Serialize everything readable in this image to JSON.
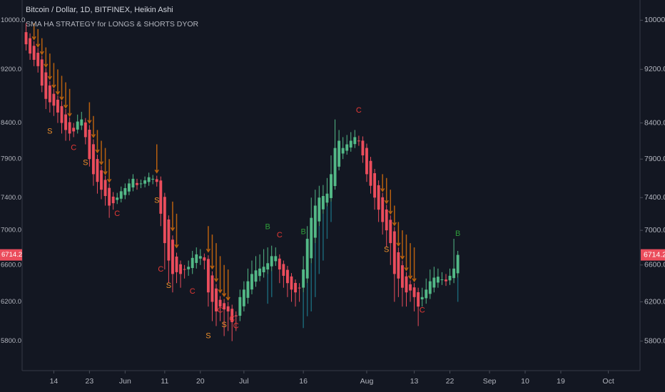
{
  "chart_data": {
    "type": "candlestick",
    "title": "Bitcoin / Dollar, 1D, BITFINEX, Heikin Ashi",
    "subtitle": "SMA HA STRATEGY for LONGS & SHORTS DYOR",
    "x": [
      "May 7",
      "May 8",
      "May 9",
      "May 10",
      "May 11",
      "May 12",
      "May 13",
      "May 14",
      "May 15",
      "May 16",
      "May 17",
      "May 18",
      "May 19",
      "May 20",
      "May 21",
      "May 22",
      "May 23",
      "May 24",
      "May 25",
      "May 26",
      "May 27",
      "May 28",
      "May 29",
      "May 30",
      "May 31",
      "Jun 1",
      "Jun 2",
      "Jun 3",
      "Jun 4",
      "Jun 5",
      "Jun 6",
      "Jun 7",
      "Jun 8",
      "Jun 9",
      "Jun 10",
      "Jun 11",
      "Jun 12",
      "Jun 13",
      "Jun 14",
      "Jun 15",
      "Jun 16",
      "Jun 17",
      "Jun 18",
      "Jun 19",
      "Jun 20",
      "Jun 21",
      "Jun 22",
      "Jun 23",
      "Jun 24",
      "Jun 25",
      "Jun 26",
      "Jun 27",
      "Jun 28",
      "Jun 29",
      "Jun 30",
      "Jul 1",
      "Jul 2",
      "Jul 3",
      "Jul 4",
      "Jul 5",
      "Jul 6",
      "Jul 7",
      "Jul 8",
      "Jul 9",
      "Jul 10",
      "Jul 11",
      "Jul 12",
      "Jul 13",
      "Jul 14",
      "Jul 15",
      "Jul 16",
      "Jul 17",
      "Jul 18",
      "Jul 19",
      "Jul 20",
      "Jul 21",
      "Jul 22",
      "Jul 23",
      "Jul 24",
      "Jul 25",
      "Jul 26",
      "Jul 27",
      "Jul 28",
      "Jul 29",
      "Jul 30",
      "Jul 31",
      "Aug 1",
      "Aug 2",
      "Aug 3",
      "Aug 4",
      "Aug 5",
      "Aug 6",
      "Aug 7",
      "Aug 8",
      "Aug 9",
      "Aug 10",
      "Aug 11",
      "Aug 12",
      "Aug 13",
      "Aug 14",
      "Aug 15",
      "Aug 16",
      "Aug 17",
      "Aug 18",
      "Aug 19",
      "Aug 20",
      "Aug 21",
      "Aug 22",
      "Aug 23",
      "Aug 24"
    ],
    "open": [
      9800,
      9700,
      9575,
      9463,
      9356,
      9153,
      8952,
      8826,
      8738,
      8644,
      8522,
      8411,
      8331,
      8306,
      8363,
      8407,
      8304,
      8102,
      7901,
      7751,
      7626,
      7523,
      7412,
      7371,
      7386,
      7433,
      7477,
      7529,
      7585,
      7573,
      7577,
      7599,
      7630,
      7635,
      7618,
      7409,
      7130,
      6890,
      6695,
      6608,
      6554,
      6552,
      6566,
      6623,
      6672,
      6686,
      6668,
      6484,
      6342,
      6221,
      6186,
      6153,
      6127,
      6059,
      6055,
      6153,
      6242,
      6331,
      6416,
      6478,
      6519,
      6550,
      6585,
      6643,
      6672,
      6611,
      6546,
      6473,
      6402,
      6351,
      6351,
      6451,
      6676,
      6913,
      7107,
      7254,
      7337,
      7394,
      7547,
      7799,
      7975,
      8013,
      8057,
      8104,
      8152,
      8151,
      8051,
      7876,
      7713,
      7557,
      7404,
      7252,
      7126,
      6988,
      6744,
      6597,
      6474,
      6387,
      6354,
      6302,
      6226,
      6238,
      6284,
      6352,
      6406,
      6438,
      6439,
      6430,
      6455,
      6508
    ],
    "high": [
      9950,
      9780,
      9650,
      9540,
      9420,
      9220,
      9020,
      8900,
      8800,
      8720,
      8600,
      8480,
      8400,
      8520,
      8560,
      8470,
      8370,
      8170,
      7960,
      7810,
      7680,
      7580,
      7470,
      7460,
      7540,
      7580,
      7640,
      7700,
      7640,
      7630,
      7670,
      7720,
      7690,
      7680,
      7670,
      7460,
      7180,
      6940,
      6740,
      6650,
      6600,
      6650,
      6760,
      6800,
      6780,
      6730,
      6710,
      6530,
      6390,
      6260,
      6230,
      6200,
      6170,
      6100,
      6330,
      6420,
      6560,
      6650,
      6700,
      6720,
      6780,
      6800,
      6820,
      6800,
      6720,
      6650,
      6590,
      6510,
      6440,
      6400,
      6700,
      7050,
      7400,
      7500,
      7550,
      7560,
      7650,
      7950,
      8450,
      8300,
      8200,
      8230,
      8270,
      8300,
      8220,
      8210,
      8110,
      7930,
      7770,
      7620,
      7460,
      7310,
      7180,
      7040,
      6800,
      6650,
      6520,
      6430,
      6400,
      6350,
      6350,
      6450,
      6550,
      6580,
      6560,
      6520,
      6500,
      6560,
      6900,
      6760
    ],
    "low": [
      9500,
      9350,
      9250,
      9150,
      8850,
      8600,
      8550,
      8500,
      8400,
      8250,
      8150,
      8150,
      8200,
      8250,
      8300,
      8100,
      7800,
      7550,
      7450,
      7380,
      7300,
      7150,
      7250,
      7320,
      7340,
      7380,
      7430,
      7480,
      7500,
      7520,
      7530,
      7550,
      7570,
      7540,
      7050,
      6550,
      6400,
      6300,
      6400,
      6350,
      6450,
      6480,
      6500,
      6560,
      6600,
      6550,
      6150,
      6000,
      5950,
      6000,
      5850,
      5900,
      5800,
      5900,
      6000,
      6100,
      6180,
      6280,
      6360,
      6420,
      6460,
      6500,
      6530,
      6590,
      6400,
      6350,
      6250,
      6200,
      6150,
      6200,
      6300,
      6400,
      6620,
      6850,
      7050,
      7200,
      7290,
      7350,
      7500,
      7750,
      7900,
      7960,
      8000,
      8050,
      8080,
      7850,
      7600,
      7450,
      7250,
      7100,
      6950,
      6800,
      6600,
      6200,
      6250,
      6150,
      6150,
      6200,
      6100,
      5950,
      6150,
      6180,
      6230,
      6300,
      6350,
      6380,
      6370,
      6380,
      6400,
      6460
    ],
    "close": [
      9600,
      9450,
      9350,
      9250,
      8950,
      8750,
      8700,
      8650,
      8550,
      8400,
      8300,
      8250,
      8280,
      8420,
      8450,
      8200,
      7900,
      7700,
      7600,
      7500,
      7420,
      7300,
      7330,
      7400,
      7480,
      7520,
      7580,
      7640,
      7560,
      7580,
      7620,
      7660,
      7640,
      7600,
      7200,
      6850,
      6650,
      6500,
      6520,
      6500,
      6550,
      6580,
      6680,
      6720,
      6700,
      6650,
      6300,
      6200,
      6100,
      6150,
      6120,
      6100,
      5990,
      6050,
      6250,
      6330,
      6420,
      6500,
      6540,
      6560,
      6580,
      6620,
      6700,
      6700,
      6550,
      6480,
      6400,
      6330,
      6300,
      6350,
      6550,
      6900,
      7150,
      7300,
      7400,
      7420,
      7450,
      7700,
      8050,
      8150,
      8050,
      8100,
      8150,
      8200,
      8150,
      7950,
      7700,
      7550,
      7400,
      7250,
      7100,
      7000,
      6850,
      6500,
      6450,
      6350,
      6300,
      6320,
      6250,
      6150,
      6250,
      6330,
      6420,
      6460,
      6470,
      6440,
      6420,
      6480,
      6560,
      6714.2
    ],
    "up_color": "#53b987",
    "down_color": "#eb4d5c",
    "log_scale": true,
    "ylim": [
      5550,
      10250
    ],
    "yticks": [
      {
        "value": 10000,
        "label": "10000.0"
      },
      {
        "value": 9200,
        "label": "9200.0"
      },
      {
        "value": 8400,
        "label": "8400.0"
      },
      {
        "value": 7900,
        "label": "7900.0"
      },
      {
        "value": 7400,
        "label": "7400.0"
      },
      {
        "value": 7000,
        "label": "7000.0"
      },
      {
        "value": 6600,
        "label": "6600.0"
      },
      {
        "value": 6200,
        "label": "6200.0"
      },
      {
        "value": 5800,
        "label": "5800.0"
      }
    ],
    "xlim": [
      "May 6",
      "Oct 9"
    ],
    "xticks": [
      {
        "value": "May 14",
        "label": "14"
      },
      {
        "value": "May 23",
        "label": "23"
      },
      {
        "value": "Jun 1",
        "label": "Jun"
      },
      {
        "value": "Jun 11",
        "label": "11"
      },
      {
        "value": "Jun 20",
        "label": "20"
      },
      {
        "value": "Jul 1",
        "label": "Jul"
      },
      {
        "value": "Jul 16",
        "label": "16"
      },
      {
        "value": "Aug 1",
        "label": "Aug"
      },
      {
        "value": "Aug 13",
        "label": "13"
      },
      {
        "value": "Aug 22",
        "label": "22"
      },
      {
        "value": "Sep 1",
        "label": "Sep"
      },
      {
        "value": "Sep 10",
        "label": "10"
      },
      {
        "value": "Sep 19",
        "label": "19"
      },
      {
        "value": "Oct 1",
        "label": "Oct"
      }
    ],
    "annotations": [
      {
        "x": "May 13",
        "y": 8280,
        "text": "S",
        "color": "#f0902a"
      },
      {
        "x": "May 19",
        "y": 8050,
        "text": "C",
        "color": "#e53935"
      },
      {
        "x": "May 22",
        "y": 7850,
        "text": "S",
        "color": "#f0902a"
      },
      {
        "x": "May 30",
        "y": 7200,
        "text": "C",
        "color": "#e53935"
      },
      {
        "x": "Jun 9",
        "y": 7360,
        "text": "S",
        "color": "#f0902a"
      },
      {
        "x": "Jun 10",
        "y": 6550,
        "text": "C",
        "color": "#e53935"
      },
      {
        "x": "Jun 12",
        "y": 6370,
        "text": "S",
        "color": "#f0902a"
      },
      {
        "x": "Jun 18",
        "y": 6310,
        "text": "C",
        "color": "#e53935"
      },
      {
        "x": "Jun 22",
        "y": 5850,
        "text": "S",
        "color": "#f0902a"
      },
      {
        "x": "Jun 25",
        "y": 6110,
        "text": "C",
        "color": "#e53935"
      },
      {
        "x": "Jun 26",
        "y": 5960,
        "text": "S",
        "color": "#f0902a"
      },
      {
        "x": "Jun 28",
        "y": 6020,
        "text": "C",
        "color": "#e53935"
      },
      {
        "x": "Jun 29",
        "y": 5950,
        "text": "C",
        "color": "#e53935"
      },
      {
        "x": "Jul 7",
        "y": 7040,
        "text": "B",
        "color": "#2e9d3a"
      },
      {
        "x": "Jul 10",
        "y": 6940,
        "text": "C",
        "color": "#e53935"
      },
      {
        "x": "Jul 16",
        "y": 6980,
        "text": "B",
        "color": "#2e9d3a"
      },
      {
        "x": "Jul 30",
        "y": 8580,
        "text": "C",
        "color": "#e53935"
      },
      {
        "x": "Aug 6",
        "y": 6770,
        "text": "S",
        "color": "#f0902a"
      },
      {
        "x": "Aug 15",
        "y": 6110,
        "text": "C",
        "color": "#e53935"
      },
      {
        "x": "Aug 24",
        "y": 6960,
        "text": "B",
        "color": "#2e9d3a"
      }
    ],
    "arrows": {
      "color": "#b8600f",
      "x": [
        "May 9",
        "May 10",
        "May 11",
        "May 12",
        "May 13",
        "May 14",
        "May 15",
        "May 16",
        "May 17",
        "May 18",
        "May 23",
        "May 24",
        "May 25",
        "May 26",
        "May 27",
        "May 28",
        "Jun 9",
        "Jun 13",
        "Jun 14",
        "Jun 22",
        "Jun 23",
        "Jun 24",
        "Jun 25",
        "Jun 26",
        "Jun 27",
        "Aug 5",
        "Aug 6",
        "Aug 7",
        "Aug 8",
        "Aug 9",
        "Aug 10",
        "Aug 11",
        "Aug 12",
        "Aug 13"
      ],
      "top": [
        9950,
        9850,
        9700,
        9550,
        9450,
        9300,
        9200,
        9100,
        9000,
        8900,
        8700,
        8500,
        8300,
        8150,
        8050,
        7900,
        8100,
        7350,
        7200,
        7050,
        6950,
        6850,
        6700,
        6600,
        6550,
        7700,
        7650,
        7500,
        7300,
        7100,
        7000,
        6950,
        6850,
        6800
      ],
      "bottom": [
        9680,
        9560,
        9440,
        9240,
        9050,
        8920,
        8820,
        8740,
        8620,
        8500,
        8400,
        8200,
        7990,
        7830,
        7700,
        7600,
        7720,
        7000,
        6800,
        6750,
        6560,
        6420,
        6300,
        6260,
        6220,
        7480,
        7330,
        7200,
        7060,
        6820,
        6670,
        6540,
        6450,
        6420
      ]
    },
    "lines_below": {
      "color": "#1b6474",
      "x": [
        "Jul 7",
        "Jul 8",
        "Jul 16",
        "Jul 17",
        "Jul 18",
        "Jul 19",
        "Jul 20",
        "Jul 21",
        "Jul 22",
        "Jul 23",
        "Aug 24"
      ],
      "top": [
        6500,
        6530,
        6300,
        6400,
        6620,
        6850,
        7050,
        7200,
        7290,
        7350,
        6460
      ],
      "bottom": [
        6180,
        6250,
        5930,
        6050,
        6100,
        6250,
        6500,
        6650,
        6900,
        7100,
        6200
      ]
    },
    "last_price_color": "#eb4d5c"
  }
}
